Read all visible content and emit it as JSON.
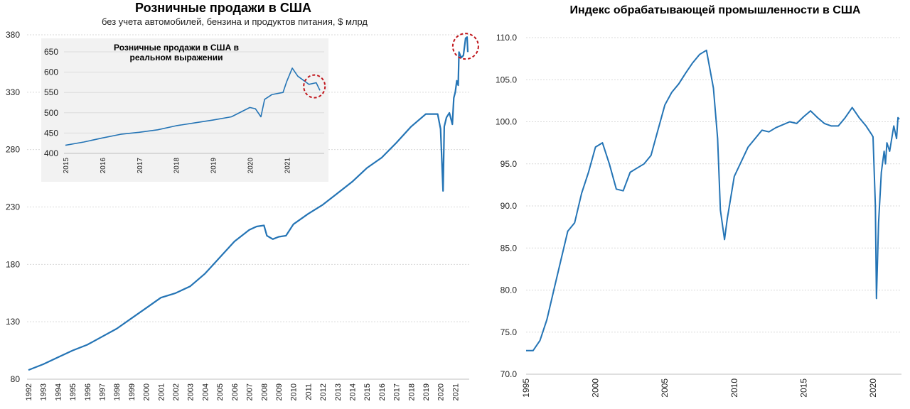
{
  "colors": {
    "line": "#2474b5",
    "grid": "#d9d9d9",
    "inset_bg": "#f2f2f2",
    "marker": "#c0151b"
  },
  "chart_data": [
    {
      "type": "line",
      "title": "Розничные продажи в США",
      "subtitle": "без учета автомобилей, бензина и продуктов питания, $ млрд",
      "ylim": [
        80,
        380
      ],
      "y_ticks": [
        "80",
        "130",
        "180",
        "230",
        "280",
        "330",
        "380"
      ],
      "x_ticks": [
        "1992",
        "1993",
        "1994",
        "1995",
        "1996",
        "1997",
        "1998",
        "1999",
        "2000",
        "2001",
        "2002",
        "2003",
        "2004",
        "2005",
        "2006",
        "2007",
        "2008",
        "2009",
        "2010",
        "2011",
        "2012",
        "2013",
        "2014",
        "2015",
        "2016",
        "2017",
        "2018",
        "2019",
        "2020",
        "2021"
      ],
      "x": [
        1992.0,
        1993.0,
        1994.0,
        1995.0,
        1996.0,
        1997.0,
        1998.0,
        1999.0,
        2000.0,
        2001.0,
        2002.0,
        2003.0,
        2004.0,
        2005.0,
        2006.0,
        2007.0,
        2007.5,
        2008.0,
        2008.2,
        2008.6,
        2009.0,
        2009.5,
        2010.0,
        2011.0,
        2012.0,
        2013.0,
        2014.0,
        2015.0,
        2016.0,
        2017.0,
        2018.0,
        2019.0,
        2019.8,
        2020.0,
        2020.17,
        2020.25,
        2020.4,
        2020.6,
        2020.8,
        2020.9,
        2021.0,
        2021.1,
        2021.2,
        2021.25,
        2021.4,
        2021.55,
        2021.7,
        2021.8,
        2021.85
      ],
      "y": [
        88,
        93,
        99,
        105,
        110,
        117,
        124,
        133,
        142,
        151,
        155,
        161,
        172,
        186,
        200,
        210,
        213,
        214,
        205,
        202,
        204,
        205,
        215,
        224,
        232,
        242,
        252,
        264,
        273,
        286,
        300,
        311,
        311,
        298,
        244,
        300,
        308,
        312,
        302,
        325,
        330,
        340,
        336,
        365,
        360,
        362,
        377,
        378,
        365
      ],
      "annotation": "circle-peak"
    },
    {
      "type": "line",
      "title": "Розничные продажи в США в реальном выражении",
      "ylim": [
        400,
        650
      ],
      "y_ticks": [
        "400",
        "450",
        "500",
        "550",
        "600",
        "650"
      ],
      "x_ticks": [
        "2015",
        "2016",
        "2017",
        "2018",
        "2019",
        "2020",
        "2021"
      ],
      "x": [
        2015.0,
        2015.5,
        2016.0,
        2016.5,
        2017.0,
        2017.5,
        2018.0,
        2018.5,
        2019.0,
        2019.5,
        2020.0,
        2020.15,
        2020.3,
        2020.4,
        2020.6,
        2020.9,
        2021.0,
        2021.15,
        2021.3,
        2021.5,
        2021.6,
        2021.8,
        2021.9
      ],
      "y": [
        420,
        428,
        438,
        447,
        452,
        458,
        468,
        475,
        482,
        490,
        513,
        510,
        490,
        533,
        545,
        550,
        577,
        610,
        590,
        577,
        570,
        574,
        555
      ],
      "annotation": "circle-end"
    },
    {
      "type": "line",
      "title": "Индекс обрабатывающей промышленности в США",
      "ylim": [
        70.0,
        110.0
      ],
      "y_ticks": [
        "70.0",
        "75.0",
        "80.0",
        "85.0",
        "90.0",
        "95.0",
        "100.0",
        "105.0",
        "110.0"
      ],
      "x_ticks": [
        "1995",
        "2000",
        "2005",
        "2010",
        "2015",
        "2020"
      ],
      "x": [
        1995.0,
        1995.5,
        1996.0,
        1996.5,
        1997.0,
        1997.5,
        1998.0,
        1998.5,
        1999.0,
        1999.5,
        2000.0,
        2000.5,
        2001.0,
        2001.5,
        2002.0,
        2002.5,
        2003.0,
        2003.5,
        2004.0,
        2004.5,
        2005.0,
        2005.5,
        2006.0,
        2006.5,
        2007.0,
        2007.5,
        2008.0,
        2008.5,
        2008.8,
        2009.0,
        2009.3,
        2009.5,
        2010.0,
        2011.0,
        2012.0,
        2012.5,
        2013.0,
        2014.0,
        2014.5,
        2015.0,
        2015.5,
        2016.0,
        2016.5,
        2017.0,
        2017.5,
        2018.0,
        2018.5,
        2019.0,
        2019.5,
        2019.9,
        2020.0,
        2020.17,
        2020.25,
        2020.4,
        2020.6,
        2020.8,
        2020.9,
        2021.0,
        2021.2,
        2021.5,
        2021.7,
        2021.8,
        2021.9
      ],
      "y": [
        72.8,
        72.8,
        74.0,
        76.5,
        80.0,
        83.5,
        87.0,
        88.0,
        91.5,
        94.0,
        97.0,
        97.5,
        95.0,
        92.0,
        91.8,
        94.0,
        94.5,
        95.0,
        96.0,
        99.0,
        102.0,
        103.5,
        104.5,
        105.8,
        107.0,
        108.0,
        108.5,
        104.0,
        98.0,
        89.5,
        86.0,
        88.5,
        93.5,
        97.0,
        99.0,
        98.8,
        99.3,
        100.0,
        99.8,
        100.6,
        101.3,
        100.5,
        99.8,
        99.5,
        99.5,
        100.5,
        101.7,
        100.5,
        99.5,
        98.5,
        98.2,
        90.0,
        79.0,
        88.0,
        94.0,
        96.5,
        95.0,
        97.5,
        96.5,
        99.5,
        98.0,
        100.5,
        100.3
      ]
    }
  ]
}
